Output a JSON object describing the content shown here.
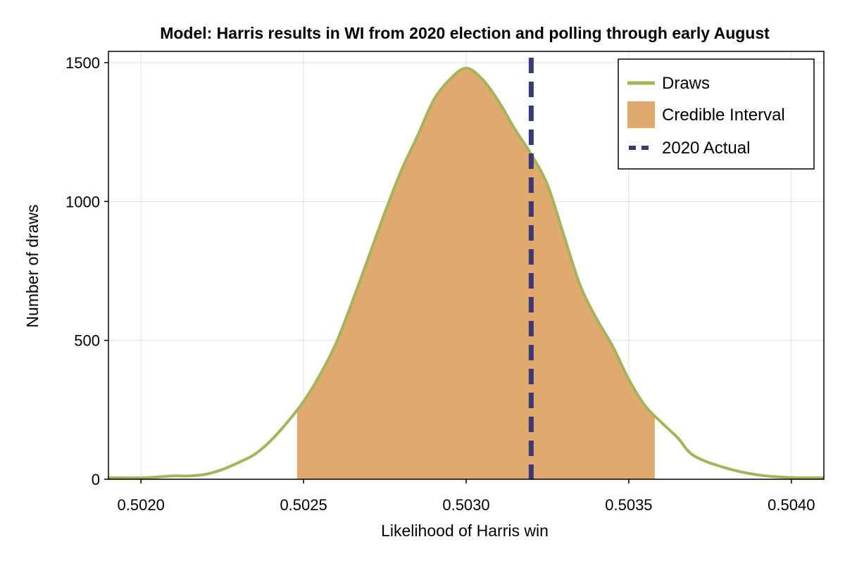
{
  "chart_data": {
    "type": "area",
    "title": "Model: Harris results in WI from 2020 election and polling through early August",
    "xlabel": "Likelihood of Harris win",
    "ylabel": "Number of draws",
    "xlim": [
      0.5019,
      0.5041
    ],
    "ylim": [
      0,
      1500
    ],
    "xticks": [
      0.502,
      0.5025,
      0.503,
      0.5035,
      0.504
    ],
    "xtick_labels": [
      "0.5020",
      "0.5025",
      "0.5030",
      "0.5035",
      "0.5040"
    ],
    "yticks": [
      0,
      500,
      1000,
      1500
    ],
    "ytick_labels": [
      "0",
      "500",
      "1000",
      "1500"
    ],
    "grid": true,
    "legend_position": "top-right",
    "series": [
      {
        "name": "Draws",
        "color": "#a3b45a",
        "x": [
          0.5019,
          0.502,
          0.50205,
          0.5021,
          0.50215,
          0.5022,
          0.50225,
          0.5023,
          0.50235,
          0.5024,
          0.50245,
          0.5025,
          0.50255,
          0.5026,
          0.50265,
          0.5027,
          0.50275,
          0.5028,
          0.50285,
          0.5029,
          0.50295,
          0.503,
          0.50305,
          0.5031,
          0.50315,
          0.5032,
          0.50325,
          0.5033,
          0.50335,
          0.5034,
          0.50345,
          0.5035,
          0.50355,
          0.5036,
          0.50365,
          0.5037,
          0.5038,
          0.5039,
          0.504,
          0.5041
        ],
        "y": [
          5,
          5,
          8,
          12,
          12,
          18,
          35,
          60,
          90,
          140,
          205,
          280,
          375,
          490,
          640,
          800,
          960,
          1110,
          1235,
          1365,
          1440,
          1480,
          1440,
          1360,
          1260,
          1170,
          1060,
          880,
          700,
          580,
          480,
          360,
          265,
          205,
          150,
          85,
          40,
          15,
          6,
          5
        ]
      }
    ],
    "credible_interval": {
      "name": "Credible Interval",
      "lower": 0.50248,
      "upper": 0.50358,
      "color": "#e0a96d"
    },
    "reference_line": {
      "name": "2020 Actual",
      "x": 0.5032,
      "color": "#3b3a78"
    }
  }
}
